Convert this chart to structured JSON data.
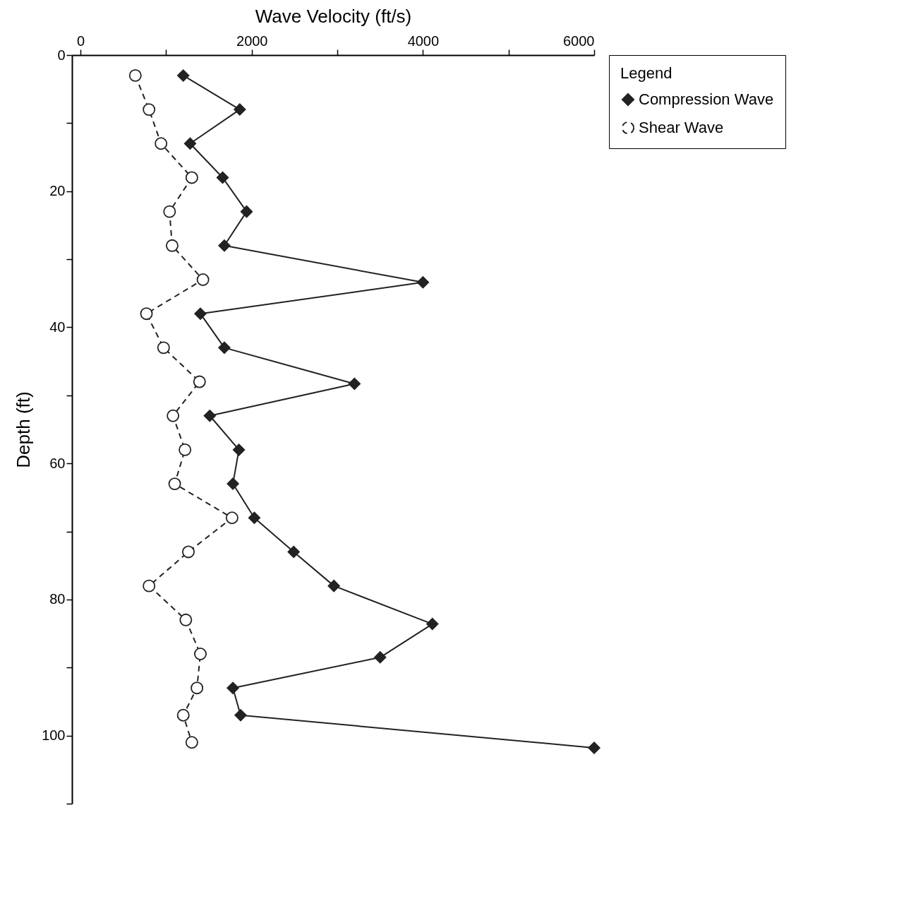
{
  "chart_data": {
    "type": "line",
    "xlabel": "Wave Velocity (ft/s)",
    "ylabel": "Depth (ft)",
    "legend_title": "Legend",
    "xlim": [
      -100,
      6000
    ],
    "xticks": [
      0,
      {
        "value": 1000,
        "label": null
      },
      2000,
      {
        "value": 3000,
        "label": null
      },
      4000,
      {
        "value": 5000,
        "label": null
      },
      6000
    ],
    "ylim": [
      110,
      0
    ],
    "yticks": [
      0,
      {
        "value": 10,
        "label": null
      },
      20,
      {
        "value": 30,
        "label": null
      },
      40,
      {
        "value": 50,
        "label": null
      },
      60,
      {
        "value": 70,
        "label": null
      },
      80,
      {
        "value": 90,
        "label": null
      },
      100,
      {
        "value": 110,
        "label": null
      }
    ],
    "grid": false,
    "legend": "right",
    "series": [
      {
        "name": "Compression Wave",
        "color": "#222222",
        "marker": "diamond",
        "line_style": "solid",
        "x": [
          1200,
          1860,
          1280,
          1660,
          1940,
          1680,
          4000,
          1400,
          1680,
          3200,
          1510,
          1850,
          1780,
          2030,
          2490,
          2960,
          4110,
          3500,
          1780,
          1870,
          6000
        ],
        "values": [
          3,
          8,
          13,
          18,
          23,
          28,
          33.4,
          38,
          43,
          48.3,
          53,
          58,
          63,
          68,
          73,
          78,
          83.6,
          88.5,
          93,
          97,
          101.8
        ]
      },
      {
        "name": "Shear Wave",
        "color": "#222222",
        "marker": "circle",
        "line_style": "dashed",
        "x": [
          640,
          800,
          940,
          1300,
          1040,
          1070,
          1430,
          770,
          970,
          1390,
          1080,
          1220,
          1100,
          1770,
          1260,
          800,
          1230,
          1400,
          1360,
          1200,
          1300
        ],
        "values": [
          3,
          8,
          13,
          18,
          23,
          28,
          33,
          38,
          43,
          48,
          53,
          58,
          63,
          68,
          73,
          78,
          83,
          88,
          93,
          97,
          101
        ]
      }
    ]
  }
}
